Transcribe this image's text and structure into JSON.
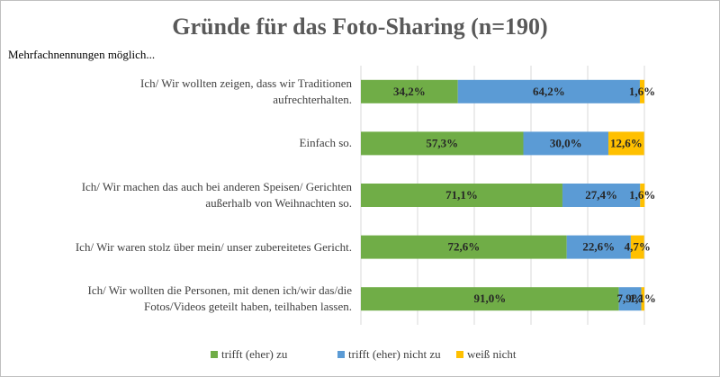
{
  "chart_data": {
    "type": "stacked-barh",
    "title": "Gründe für das Foto-Sharing (n=190)",
    "subtitle": "Mehrfachnennungen  möglich...",
    "categories": [
      "Ich/ Wir wollten zeigen, dass wir Traditionen\naufrechterhalten.",
      "Einfach so.",
      "Ich/ Wir machen das auch bei anderen Speisen/ Gerichten\naußerhalb von Weihnachten so.",
      "Ich/ Wir waren stolz über mein/ unser zubereitetes Gericht.",
      "Ich/ Wir wollten die Personen, mit denen ich/wir das/die\nFotos/Videos geteilt haben, teilhaben lassen."
    ],
    "series": [
      {
        "name": "trifft (eher) zu",
        "color": "#70ad47",
        "values": [
          34.2,
          57.3,
          71.1,
          72.6,
          91.0
        ],
        "value_labels": [
          "34,2%",
          "57,3%",
          "71,1%",
          "72,6%",
          "91,0%"
        ]
      },
      {
        "name": "trifft (eher) nicht zu",
        "color": "#5b9bd5",
        "values": [
          64.2,
          30.0,
          27.4,
          22.6,
          7.9
        ],
        "value_labels": [
          "64,2%",
          "30,0%",
          "27,4%",
          "22,6%",
          "7,9%"
        ]
      },
      {
        "name": "weiß nicht",
        "color": "#ffc000",
        "values": [
          1.6,
          12.6,
          1.6,
          4.7,
          1.1
        ],
        "value_labels": [
          "1,6%",
          "12,6%",
          "1,6%",
          "4,7%",
          "1,1%"
        ]
      }
    ],
    "xlim": [
      0,
      100
    ],
    "xticks": [
      0,
      20,
      40,
      60,
      80,
      100
    ],
    "grid": true,
    "legend": "bottom"
  }
}
